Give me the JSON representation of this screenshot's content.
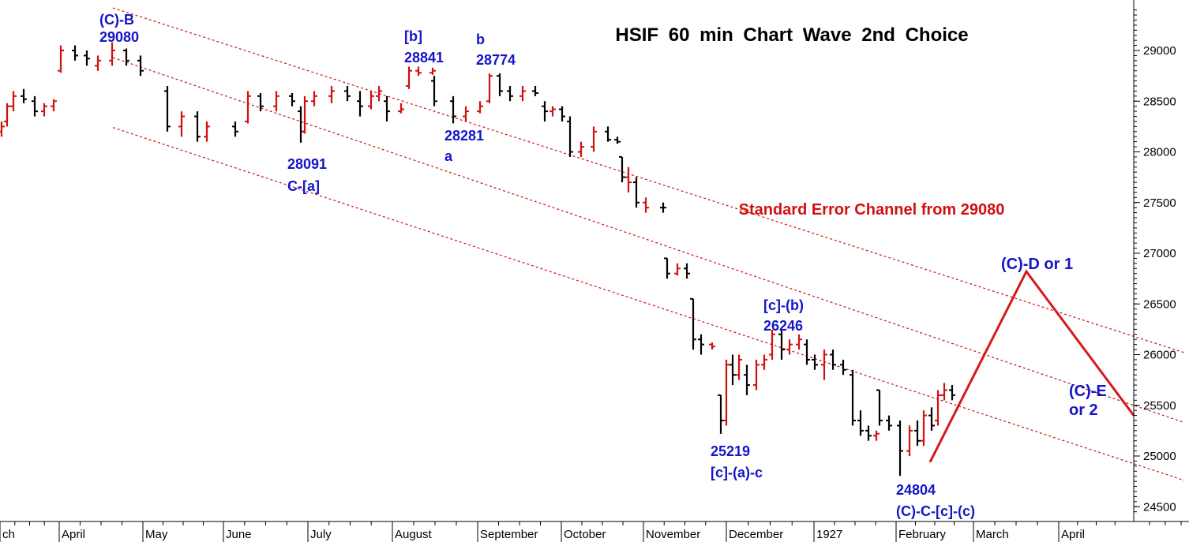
{
  "chart_data": {
    "type": "bar",
    "title": "HSIF  60  min  Chart  Wave  2nd  Choice",
    "y_ticks": [
      24500,
      25000,
      25500,
      26000,
      26500,
      27000,
      27500,
      28000,
      28500,
      29000
    ],
    "ylim": [
      24370,
      29560
    ],
    "x_ticks": [
      "ch",
      "April",
      "May",
      "June",
      "July",
      "August",
      "September",
      "October",
      "November",
      "December",
      "1927",
      "February",
      "March",
      "April"
    ],
    "channel_label": "Standard Error Channel from 29080",
    "channel": {
      "start_price": 29080,
      "upper": {
        "start": 29420,
        "end": 26020
      },
      "middle": {
        "start": 28930,
        "end": 25330
      },
      "lower": {
        "start": 28240,
        "end": 24760
      }
    },
    "price_bars": [
      {
        "o": 28200,
        "h": 28300,
        "l": 28150,
        "c": 28250,
        "color": "red"
      },
      {
        "o": 28300,
        "h": 28480,
        "l": 28250,
        "c": 28450,
        "color": "red"
      },
      {
        "o": 28450,
        "h": 28600,
        "l": 28400,
        "c": 28550,
        "color": "red"
      },
      {
        "o": 28550,
        "h": 28620,
        "l": 28480,
        "c": 28520,
        "color": "black"
      },
      {
        "o": 28500,
        "h": 28550,
        "l": 28350,
        "c": 28400,
        "color": "black"
      },
      {
        "o": 28400,
        "h": 28480,
        "l": 28350,
        "c": 28450,
        "color": "red"
      },
      {
        "o": 28450,
        "h": 28520,
        "l": 28400,
        "c": 28500,
        "color": "red"
      },
      {
        "o": 28800,
        "h": 29050,
        "l": 28780,
        "c": 29000,
        "color": "red"
      },
      {
        "o": 29000,
        "h": 29050,
        "l": 28900,
        "c": 28950,
        "color": "black"
      },
      {
        "o": 28950,
        "h": 29000,
        "l": 28850,
        "c": 28920,
        "color": "black"
      },
      {
        "o": 28850,
        "h": 28950,
        "l": 28800,
        "c": 28900,
        "color": "red"
      },
      {
        "o": 28900,
        "h": 29080,
        "l": 28850,
        "c": 29000,
        "color": "red"
      },
      {
        "o": 29000,
        "h": 29020,
        "l": 28850,
        "c": 28900,
        "color": "black"
      },
      {
        "o": 28900,
        "h": 28950,
        "l": 28750,
        "c": 28800,
        "color": "black"
      },
      {
        "o": 28600,
        "h": 28650,
        "l": 28200,
        "c": 28250,
        "color": "black"
      },
      {
        "o": 28250,
        "h": 28400,
        "l": 28150,
        "c": 28350,
        "color": "red"
      },
      {
        "o": 28350,
        "h": 28400,
        "l": 28100,
        "c": 28150,
        "color": "black"
      },
      {
        "o": 28150,
        "h": 28300,
        "l": 28100,
        "c": 28250,
        "color": "red"
      },
      {
        "o": 28250,
        "h": 28300,
        "l": 28150,
        "c": 28200,
        "color": "black"
      },
      {
        "o": 28300,
        "h": 28600,
        "l": 28280,
        "c": 28550,
        "color": "red"
      },
      {
        "o": 28550,
        "h": 28580,
        "l": 28400,
        "c": 28450,
        "color": "black"
      },
      {
        "o": 28450,
        "h": 28600,
        "l": 28400,
        "c": 28550,
        "color": "red"
      },
      {
        "o": 28550,
        "h": 28580,
        "l": 28450,
        "c": 28500,
        "color": "black"
      },
      {
        "o": 28400,
        "h": 28450,
        "l": 28091,
        "c": 28200,
        "color": "black"
      },
      {
        "o": 28200,
        "h": 28550,
        "l": 28180,
        "c": 28500,
        "color": "red"
      },
      {
        "o": 28500,
        "h": 28600,
        "l": 28450,
        "c": 28550,
        "color": "red"
      },
      {
        "o": 28550,
        "h": 28650,
        "l": 28480,
        "c": 28600,
        "color": "red"
      },
      {
        "o": 28600,
        "h": 28650,
        "l": 28500,
        "c": 28550,
        "color": "black"
      },
      {
        "o": 28500,
        "h": 28600,
        "l": 28350,
        "c": 28450,
        "color": "black"
      },
      {
        "o": 28450,
        "h": 28600,
        "l": 28420,
        "c": 28550,
        "color": "red"
      },
      {
        "o": 28550,
        "h": 28650,
        "l": 28500,
        "c": 28600,
        "color": "red"
      },
      {
        "o": 28500,
        "h": 28550,
        "l": 28300,
        "c": 28400,
        "color": "black"
      },
      {
        "o": 28400,
        "h": 28480,
        "l": 28380,
        "c": 28420,
        "color": "red"
      },
      {
        "o": 28650,
        "h": 28841,
        "l": 28620,
        "c": 28800,
        "color": "red"
      },
      {
        "o": 28800,
        "h": 28841,
        "l": 28750,
        "c": 28780,
        "color": "red"
      },
      {
        "o": 28780,
        "h": 28830,
        "l": 28760,
        "c": 28800,
        "color": "red"
      },
      {
        "o": 28700,
        "h": 28750,
        "l": 28450,
        "c": 28500,
        "color": "black"
      },
      {
        "o": 28500,
        "h": 28550,
        "l": 28281,
        "c": 28350,
        "color": "black"
      },
      {
        "o": 28350,
        "h": 28450,
        "l": 28300,
        "c": 28400,
        "color": "red"
      },
      {
        "o": 28400,
        "h": 28500,
        "l": 28380,
        "c": 28450,
        "color": "red"
      },
      {
        "o": 28500,
        "h": 28774,
        "l": 28480,
        "c": 28750,
        "color": "red"
      },
      {
        "o": 28750,
        "h": 28774,
        "l": 28550,
        "c": 28600,
        "color": "black"
      },
      {
        "o": 28600,
        "h": 28650,
        "l": 28500,
        "c": 28550,
        "color": "black"
      },
      {
        "o": 28550,
        "h": 28650,
        "l": 28500,
        "c": 28600,
        "color": "red"
      },
      {
        "o": 28600,
        "h": 28650,
        "l": 28550,
        "c": 28580,
        "color": "black"
      },
      {
        "o": 28450,
        "h": 28500,
        "l": 28300,
        "c": 28400,
        "color": "black"
      },
      {
        "o": 28400,
        "h": 28450,
        "l": 28350,
        "c": 28420,
        "color": "red"
      },
      {
        "o": 28420,
        "h": 28450,
        "l": 28300,
        "c": 28350,
        "color": "black"
      },
      {
        "o": 28300,
        "h": 28350,
        "l": 27950,
        "c": 28000,
        "color": "black"
      },
      {
        "o": 28000,
        "h": 28100,
        "l": 27950,
        "c": 28050,
        "color": "red"
      },
      {
        "o": 28050,
        "h": 28250,
        "l": 28000,
        "c": 28200,
        "color": "red"
      },
      {
        "o": 28200,
        "h": 28250,
        "l": 28100,
        "c": 28120,
        "color": "black"
      },
      {
        "o": 28120,
        "h": 28150,
        "l": 28080,
        "c": 28100,
        "color": "black"
      },
      {
        "o": 27950,
        "h": 27950,
        "l": 27700,
        "c": 27750,
        "color": "black"
      },
      {
        "o": 27750,
        "h": 27850,
        "l": 27600,
        "c": 27700,
        "color": "red"
      },
      {
        "o": 27700,
        "h": 27750,
        "l": 27450,
        "c": 27500,
        "color": "black"
      },
      {
        "o": 27500,
        "h": 27550,
        "l": 27400,
        "c": 27450,
        "color": "red"
      },
      {
        "o": 27450,
        "h": 27500,
        "l": 27400,
        "c": 27450,
        "color": "black"
      },
      {
        "o": 26950,
        "h": 26950,
        "l": 26750,
        "c": 26800,
        "color": "black"
      },
      {
        "o": 26800,
        "h": 26900,
        "l": 26780,
        "c": 26850,
        "color": "red"
      },
      {
        "o": 26850,
        "h": 26900,
        "l": 26750,
        "c": 26800,
        "color": "black"
      },
      {
        "o": 26550,
        "h": 26550,
        "l": 26050,
        "c": 26150,
        "color": "black"
      },
      {
        "o": 26150,
        "h": 26200,
        "l": 26000,
        "c": 26100,
        "color": "black"
      },
      {
        "o": 26100,
        "h": 26120,
        "l": 26050,
        "c": 26080,
        "color": "red"
      },
      {
        "o": 25600,
        "h": 25600,
        "l": 25219,
        "c": 25350,
        "color": "black"
      },
      {
        "o": 25350,
        "h": 25950,
        "l": 25300,
        "c": 25900,
        "color": "red"
      },
      {
        "o": 25900,
        "h": 26000,
        "l": 25700,
        "c": 25800,
        "color": "black"
      },
      {
        "o": 25800,
        "h": 26000,
        "l": 25750,
        "c": 25950,
        "color": "red"
      },
      {
        "o": 25800,
        "h": 25900,
        "l": 25600,
        "c": 25700,
        "color": "black"
      },
      {
        "o": 25700,
        "h": 25950,
        "l": 25650,
        "c": 25900,
        "color": "red"
      },
      {
        "o": 25900,
        "h": 26000,
        "l": 25850,
        "c": 25950,
        "color": "red"
      },
      {
        "o": 26000,
        "h": 26246,
        "l": 25950,
        "c": 26200,
        "color": "red"
      },
      {
        "o": 26200,
        "h": 26246,
        "l": 25950,
        "c": 26050,
        "color": "black"
      },
      {
        "o": 26050,
        "h": 26150,
        "l": 26000,
        "c": 26100,
        "color": "red"
      },
      {
        "o": 26100,
        "h": 26200,
        "l": 26050,
        "c": 26150,
        "color": "red"
      },
      {
        "o": 26100,
        "h": 26150,
        "l": 25900,
        "c": 25950,
        "color": "black"
      },
      {
        "o": 25950,
        "h": 26000,
        "l": 25850,
        "c": 25900,
        "color": "black"
      },
      {
        "o": 25900,
        "h": 26050,
        "l": 25750,
        "c": 26000,
        "color": "red"
      },
      {
        "o": 26000,
        "h": 26050,
        "l": 25850,
        "c": 25900,
        "color": "black"
      },
      {
        "o": 25900,
        "h": 25950,
        "l": 25800,
        "c": 25850,
        "color": "black"
      },
      {
        "o": 25800,
        "h": 25850,
        "l": 25300,
        "c": 25350,
        "color": "black"
      },
      {
        "o": 25350,
        "h": 25450,
        "l": 25200,
        "c": 25250,
        "color": "black"
      },
      {
        "o": 25250,
        "h": 25300,
        "l": 25150,
        "c": 25200,
        "color": "black"
      },
      {
        "o": 25200,
        "h": 25250,
        "l": 25150,
        "c": 25220,
        "color": "red"
      },
      {
        "o": 25650,
        "h": 25650,
        "l": 25300,
        "c": 25350,
        "color": "black"
      },
      {
        "o": 25350,
        "h": 25400,
        "l": 25250,
        "c": 25300,
        "color": "black"
      },
      {
        "o": 25300,
        "h": 25350,
        "l": 24804,
        "c": 25050,
        "color": "black"
      },
      {
        "o": 25050,
        "h": 25300,
        "l": 25000,
        "c": 25250,
        "color": "red"
      },
      {
        "o": 25250,
        "h": 25350,
        "l": 25100,
        "c": 25150,
        "color": "black"
      },
      {
        "o": 25150,
        "h": 25450,
        "l": 25100,
        "c": 25400,
        "color": "red"
      },
      {
        "o": 25400,
        "h": 25480,
        "l": 25250,
        "c": 25300,
        "color": "black"
      },
      {
        "o": 25350,
        "h": 25650,
        "l": 25300,
        "c": 25600,
        "color": "red"
      },
      {
        "o": 25600,
        "h": 25720,
        "l": 25550,
        "c": 25650,
        "color": "red"
      },
      {
        "o": 25650,
        "h": 25700,
        "l": 25550,
        "c": 25600,
        "color": "black"
      }
    ],
    "projection": [
      24940,
      26820,
      25400
    ],
    "annotations": [
      {
        "lines": [
          "(C)-B",
          "29080"
        ]
      },
      {
        "lines": [
          "28091",
          "C-[a]"
        ]
      },
      {
        "lines": [
          "[b]",
          "28841"
        ]
      },
      {
        "lines": [
          "b",
          "28774"
        ]
      },
      {
        "lines": [
          "28281",
          "a"
        ]
      },
      {
        "lines": [
          "[c]-(b)",
          "26246"
        ]
      },
      {
        "lines": [
          "25219",
          "[c]-(a)-c"
        ]
      },
      {
        "lines": [
          "24804",
          "(C)-C-[c]-(c)"
        ]
      },
      {
        "lines": [
          "(C)-D or 1"
        ]
      },
      {
        "lines": [
          "(C)-E",
          "or 2"
        ]
      }
    ],
    "colors": {
      "up_bar": "#d01010",
      "down_bar": "#000000",
      "annotation": "#1515c8",
      "channel": "#d01010",
      "projection": "#d81818"
    }
  }
}
